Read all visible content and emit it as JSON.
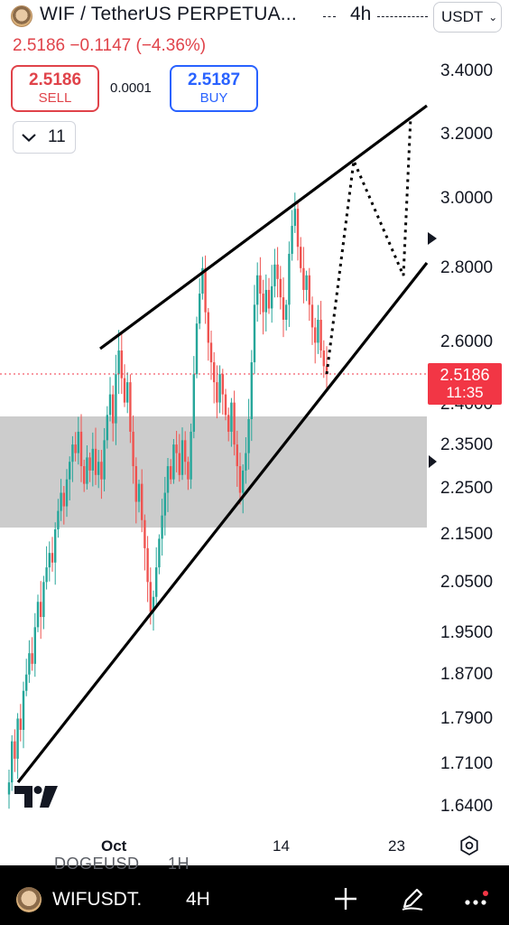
{
  "header": {
    "title": "WIF / TetherUS PERPETUA...",
    "interval": "4h",
    "currency": "USDT",
    "currency_icon": "chevron-down-icon"
  },
  "quote": {
    "last": "2.5186",
    "change": "−0.1147",
    "change_pct": "(−4.36%)",
    "color": "#e0434a"
  },
  "trade": {
    "sell_price": "2.5186",
    "sell_label": "SELL",
    "spread": "0.0001",
    "buy_price": "2.5187",
    "buy_label": "BUY",
    "sell_color": "#e0434a",
    "buy_color": "#2962ff"
  },
  "indicators": {
    "collapse_count": "11",
    "collapse_icon": "chevron-down-icon"
  },
  "price_axis": {
    "labels": [
      "3.4000",
      "3.2000",
      "3.0000",
      "2.8000",
      "2.6000",
      "2.4000",
      "2.3500",
      "2.2500",
      "2.1500",
      "2.0500",
      "1.9500",
      "1.8700",
      "1.7900",
      "1.7100",
      "1.6400"
    ]
  },
  "time_axis": {
    "labels": [
      "Oct",
      "14",
      "23"
    ]
  },
  "price_tag": {
    "price": "2.5186",
    "countdown": "11:35",
    "color": "#f23645"
  },
  "chart_data": {
    "type": "candlestick",
    "symbol": "WIFUSDT",
    "interval": "4h",
    "last_price": 2.5186,
    "ylim": [
      1.61,
      3.45
    ],
    "y_scale": "log",
    "x_ticks": [
      "Oct",
      "14",
      "23"
    ],
    "up_color": "#26a69a",
    "down_color": "#ef5350",
    "support_zone": [
      2.175,
      2.395
    ],
    "rising_wedge": {
      "upper": [
        [
          0.0,
          2.575
        ],
        [
          1.0,
          3.3
        ]
      ],
      "lower": [
        [
          0.0,
          1.67
        ],
        [
          1.0,
          2.83
        ]
      ]
    },
    "projection": [
      2.52,
      3.11,
      2.77,
      3.25
    ],
    "candle_closes": [
      1.68,
      1.75,
      1.72,
      1.79,
      1.77,
      1.84,
      1.87,
      1.91,
      1.89,
      1.96,
      2.01,
      1.98,
      2.05,
      2.08,
      2.11,
      2.09,
      2.16,
      2.2,
      2.24,
      2.21,
      2.27,
      2.31,
      2.35,
      2.33,
      2.38,
      2.3,
      2.26,
      2.32,
      2.29,
      2.34,
      2.28,
      2.31,
      2.27,
      2.36,
      2.42,
      2.47,
      2.4,
      2.52,
      2.58,
      2.51,
      2.45,
      2.5,
      2.38,
      2.3,
      2.22,
      2.26,
      2.18,
      2.12,
      2.05,
      1.99,
      2.02,
      2.08,
      2.14,
      2.19,
      2.24,
      2.3,
      2.27,
      2.35,
      2.33,
      2.28,
      2.36,
      2.31,
      2.27,
      2.38,
      2.52,
      2.65,
      2.73,
      2.8,
      2.68,
      2.6,
      2.55,
      2.5,
      2.45,
      2.52,
      2.47,
      2.42,
      2.38,
      2.45,
      2.35,
      2.3,
      2.24,
      2.29,
      2.33,
      2.41,
      2.55,
      2.7,
      2.78,
      2.73,
      2.68,
      2.74,
      2.69,
      2.75,
      2.81,
      2.77,
      2.72,
      2.66,
      2.7,
      2.84,
      2.92,
      2.97,
      2.86,
      2.8,
      2.74,
      2.78,
      2.7,
      2.64,
      2.6,
      2.66,
      2.58,
      2.54,
      2.52
    ]
  },
  "bottom_bar": {
    "symbol": "WIFUSDT.",
    "interval": "4H",
    "ghost_symbol": "DOGEUSD",
    "ghost_interval": "1H",
    "icons": [
      "plus-icon",
      "pen-icon",
      "more-icon"
    ]
  }
}
